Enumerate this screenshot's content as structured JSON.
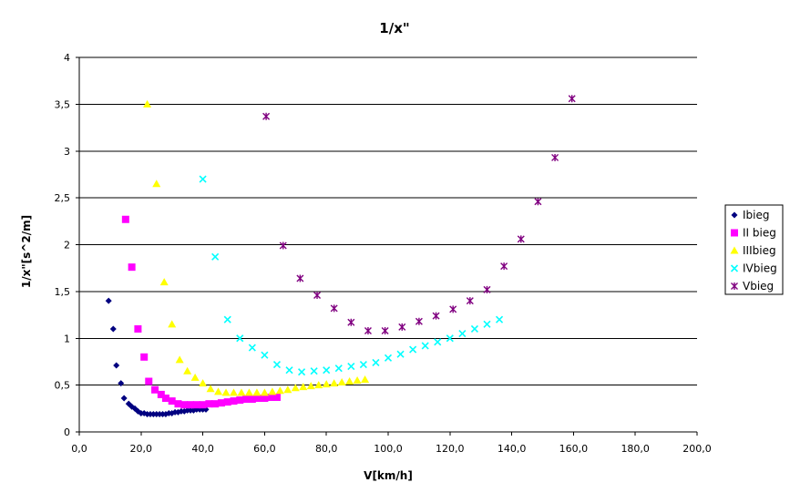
{
  "chart_data": {
    "type": "scatter",
    "title": "1/x\"",
    "xlabel": "V[km/h]",
    "ylabel": "1/x\"[s^2/m]",
    "xlim": [
      0,
      200
    ],
    "ylim": [
      0,
      4
    ],
    "x_ticks": [
      0,
      20,
      40,
      60,
      80,
      100,
      120,
      140,
      160,
      180,
      200
    ],
    "x_tick_labels": [
      "0,0",
      "20,0",
      "40,0",
      "60,0",
      "80,0",
      "100,0",
      "120,0",
      "140,0",
      "160,0",
      "180,0",
      "200,0"
    ],
    "y_ticks": [
      0,
      0.5,
      1,
      1.5,
      2,
      2.5,
      3,
      3.5,
      4
    ],
    "y_tick_labels": [
      "0",
      "0,5",
      "1",
      "1,5",
      "2",
      "2,5",
      "3",
      "3,5",
      "4"
    ],
    "grid": "horizontal",
    "legend_position": "right",
    "series": [
      {
        "name": "Ibieg",
        "color": "#000080",
        "marker": "diamond",
        "points": [
          [
            9.5,
            1.4
          ],
          [
            11,
            1.1
          ],
          [
            12,
            0.71
          ],
          [
            13.5,
            0.52
          ],
          [
            14.5,
            0.36
          ],
          [
            16,
            0.3
          ],
          [
            17,
            0.27
          ],
          [
            18,
            0.25
          ],
          [
            19,
            0.22
          ],
          [
            20,
            0.2
          ],
          [
            21,
            0.2
          ],
          [
            22,
            0.19
          ],
          [
            23,
            0.19
          ],
          [
            24,
            0.19
          ],
          [
            25,
            0.19
          ],
          [
            26,
            0.19
          ],
          [
            27,
            0.19
          ],
          [
            28,
            0.19
          ],
          [
            29,
            0.2
          ],
          [
            30,
            0.2
          ],
          [
            31,
            0.21
          ],
          [
            32,
            0.21
          ],
          [
            33,
            0.22
          ],
          [
            34,
            0.22
          ],
          [
            35,
            0.23
          ],
          [
            36,
            0.23
          ],
          [
            37,
            0.23
          ],
          [
            38,
            0.24
          ],
          [
            39,
            0.24
          ],
          [
            40,
            0.24
          ],
          [
            41,
            0.24
          ]
        ]
      },
      {
        "name": "II bieg",
        "color": "#ff00ff",
        "marker": "square",
        "points": [
          [
            15,
            2.27
          ],
          [
            17,
            1.76
          ],
          [
            19,
            1.1
          ],
          [
            21,
            0.8
          ],
          [
            22.5,
            0.54
          ],
          [
            24.5,
            0.45
          ],
          [
            26.5,
            0.4
          ],
          [
            28,
            0.36
          ],
          [
            30,
            0.33
          ],
          [
            32,
            0.3
          ],
          [
            34,
            0.29
          ],
          [
            36,
            0.29
          ],
          [
            38,
            0.29
          ],
          [
            40,
            0.29
          ],
          [
            42,
            0.3
          ],
          [
            44,
            0.3
          ],
          [
            46,
            0.31
          ],
          [
            48,
            0.32
          ],
          [
            50,
            0.33
          ],
          [
            52,
            0.34
          ],
          [
            54,
            0.35
          ],
          [
            56,
            0.35
          ],
          [
            58,
            0.36
          ],
          [
            60,
            0.36
          ],
          [
            62,
            0.37
          ],
          [
            64,
            0.37
          ]
        ]
      },
      {
        "name": "IIIbieg",
        "color": "#ffff00",
        "marker": "triangle",
        "points": [
          [
            22,
            3.5
          ],
          [
            25,
            2.65
          ],
          [
            27.5,
            1.6
          ],
          [
            30,
            1.15
          ],
          [
            32.5,
            0.77
          ],
          [
            35,
            0.65
          ],
          [
            37.5,
            0.58
          ],
          [
            40,
            0.52
          ],
          [
            42.5,
            0.46
          ],
          [
            45,
            0.43
          ],
          [
            47.5,
            0.42
          ],
          [
            50,
            0.42
          ],
          [
            52.5,
            0.42
          ],
          [
            55,
            0.42
          ],
          [
            57.5,
            0.42
          ],
          [
            60,
            0.42
          ],
          [
            62.5,
            0.43
          ],
          [
            65,
            0.44
          ],
          [
            67.5,
            0.45
          ],
          [
            70,
            0.47
          ],
          [
            72.5,
            0.48
          ],
          [
            75,
            0.49
          ],
          [
            77.5,
            0.5
          ],
          [
            80,
            0.51
          ],
          [
            82.5,
            0.52
          ],
          [
            85,
            0.53
          ],
          [
            87.5,
            0.54
          ],
          [
            90,
            0.55
          ],
          [
            92.5,
            0.56
          ]
        ]
      },
      {
        "name": "IVbieg",
        "color": "#00ffff",
        "marker": "x",
        "points": [
          [
            40,
            2.7
          ],
          [
            44,
            1.87
          ],
          [
            48,
            1.2
          ],
          [
            52,
            1.0
          ],
          [
            56,
            0.9
          ],
          [
            60,
            0.82
          ],
          [
            64,
            0.72
          ],
          [
            68,
            0.66
          ],
          [
            72,
            0.64
          ],
          [
            76,
            0.65
          ],
          [
            80,
            0.66
          ],
          [
            84,
            0.68
          ],
          [
            88,
            0.7
          ],
          [
            92,
            0.72
          ],
          [
            96,
            0.74
          ],
          [
            100,
            0.79
          ],
          [
            104,
            0.83
          ],
          [
            108,
            0.88
          ],
          [
            112,
            0.92
          ],
          [
            116,
            0.96
          ],
          [
            120,
            1.0
          ],
          [
            124,
            1.05
          ],
          [
            128,
            1.1
          ],
          [
            132,
            1.15
          ],
          [
            136,
            1.2
          ]
        ]
      },
      {
        "name": "Vbieg",
        "color": "#800080",
        "marker": "star",
        "points": [
          [
            60.5,
            3.37
          ],
          [
            66,
            1.99
          ],
          [
            71.5,
            1.64
          ],
          [
            77,
            1.46
          ],
          [
            82.5,
            1.32
          ],
          [
            88,
            1.17
          ],
          [
            93.5,
            1.08
          ],
          [
            99,
            1.08
          ],
          [
            104.5,
            1.12
          ],
          [
            110,
            1.18
          ],
          [
            115.5,
            1.24
          ],
          [
            121,
            1.31
          ],
          [
            126.5,
            1.4
          ],
          [
            132,
            1.52
          ],
          [
            137.5,
            1.77
          ],
          [
            143,
            2.06
          ],
          [
            148.5,
            2.46
          ],
          [
            154,
            2.93
          ],
          [
            159.5,
            3.56
          ]
        ]
      }
    ]
  }
}
